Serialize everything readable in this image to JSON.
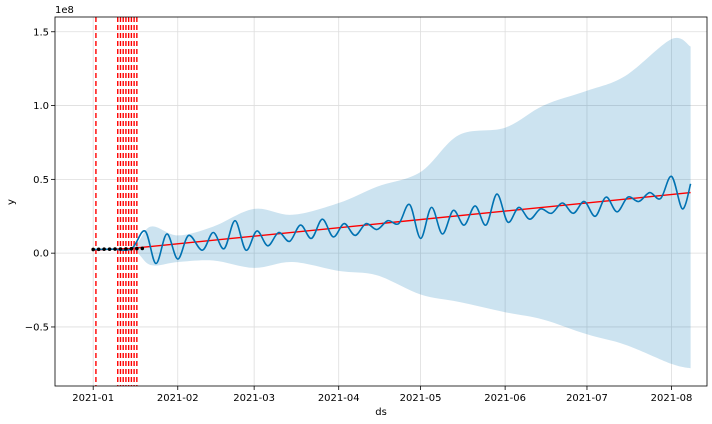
{
  "chart_data": {
    "type": "line",
    "xlabel": "ds",
    "ylabel": "y",
    "offset_text": "1e8",
    "scale_factor": 100000000,
    "grid": true,
    "xlim": [
      "2020-12-18",
      "2021-08-14"
    ],
    "ylim": [
      -0.9,
      1.6
    ],
    "x_ticks": [
      {
        "value": "2021-01-01",
        "label": "2021-01"
      },
      {
        "value": "2021-02-01",
        "label": "2021-02"
      },
      {
        "value": "2021-03-01",
        "label": "2021-03"
      },
      {
        "value": "2021-04-01",
        "label": "2021-04"
      },
      {
        "value": "2021-05-01",
        "label": "2021-05"
      },
      {
        "value": "2021-06-01",
        "label": "2021-06"
      },
      {
        "value": "2021-07-01",
        "label": "2021-07"
      },
      {
        "value": "2021-08-01",
        "label": "2021-08"
      }
    ],
    "y_ticks": [
      {
        "value": -0.5,
        "label": "−0.5"
      },
      {
        "value": 0.0,
        "label": "0.0"
      },
      {
        "value": 0.5,
        "label": "0.5"
      },
      {
        "value": 1.0,
        "label": "1.0"
      },
      {
        "value": 1.5,
        "label": "1.5"
      }
    ],
    "observed_points": {
      "color": "#000000",
      "x": [
        "2021-01-01",
        "2021-01-03",
        "2021-01-05",
        "2021-01-07",
        "2021-01-09",
        "2021-01-11",
        "2021-01-13",
        "2021-01-15",
        "2021-01-17",
        "2021-01-19"
      ],
      "y": [
        0.025,
        0.026,
        0.027,
        0.027,
        0.028,
        0.028,
        0.029,
        0.03,
        0.031,
        0.032
      ]
    },
    "forecast": {
      "color": "#0072B2",
      "x": [
        "2021-01-01",
        "2021-01-08",
        "2021-01-15",
        "2021-01-20",
        "2021-01-24",
        "2021-01-28",
        "2021-02-01",
        "2021-02-05",
        "2021-02-10",
        "2021-02-14",
        "2021-02-18",
        "2021-02-22",
        "2021-02-26",
        "2021-03-02",
        "2021-03-06",
        "2021-03-10",
        "2021-03-14",
        "2021-03-18",
        "2021-03-22",
        "2021-03-26",
        "2021-03-30",
        "2021-04-03",
        "2021-04-07",
        "2021-04-11",
        "2021-04-15",
        "2021-04-19",
        "2021-04-23",
        "2021-04-27",
        "2021-05-01",
        "2021-05-05",
        "2021-05-09",
        "2021-05-13",
        "2021-05-17",
        "2021-05-21",
        "2021-05-25",
        "2021-05-29",
        "2021-06-02",
        "2021-06-06",
        "2021-06-10",
        "2021-06-14",
        "2021-06-18",
        "2021-06-22",
        "2021-06-26",
        "2021-06-30",
        "2021-07-04",
        "2021-07-08",
        "2021-07-12",
        "2021-07-16",
        "2021-07-20",
        "2021-07-24",
        "2021-07-28",
        "2021-08-01",
        "2021-08-05",
        "2021-08-08"
      ],
      "y": [
        0.025,
        0.027,
        0.03,
        0.15,
        -0.07,
        0.13,
        -0.04,
        0.12,
        0.02,
        0.14,
        0.03,
        0.22,
        0.02,
        0.15,
        0.05,
        0.14,
        0.08,
        0.19,
        0.1,
        0.23,
        0.11,
        0.2,
        0.12,
        0.2,
        0.16,
        0.22,
        0.2,
        0.33,
        0.1,
        0.31,
        0.13,
        0.29,
        0.19,
        0.32,
        0.19,
        0.4,
        0.21,
        0.31,
        0.23,
        0.3,
        0.27,
        0.34,
        0.27,
        0.35,
        0.25,
        0.38,
        0.28,
        0.38,
        0.35,
        0.41,
        0.37,
        0.52,
        0.3,
        0.47
      ]
    },
    "uncertainty": {
      "color": "#0072B2",
      "opacity": 0.2,
      "x": [
        "2021-01-01",
        "2021-01-15",
        "2021-01-22",
        "2021-02-01",
        "2021-02-14",
        "2021-03-01",
        "2021-03-15",
        "2021-04-01",
        "2021-04-15",
        "2021-05-01",
        "2021-05-15",
        "2021-06-01",
        "2021-06-15",
        "2021-07-01",
        "2021-07-15",
        "2021-08-01",
        "2021-08-08"
      ],
      "upper": [
        0.03,
        0.035,
        0.18,
        0.12,
        0.18,
        0.3,
        0.26,
        0.34,
        0.45,
        0.55,
        0.8,
        0.85,
        1.0,
        1.1,
        1.2,
        1.45,
        1.4
      ],
      "lower": [
        0.02,
        0.025,
        -0.08,
        -0.06,
        -0.05,
        -0.1,
        -0.06,
        -0.12,
        -0.15,
        -0.28,
        -0.33,
        -0.4,
        -0.45,
        -0.55,
        -0.62,
        -0.75,
        -0.78
      ]
    },
    "trend": {
      "color": "#ff0000",
      "x": [
        "2021-01-01",
        "2021-01-15",
        "2021-08-08"
      ],
      "y": [
        0.022,
        0.032,
        0.41
      ]
    },
    "changepoints": {
      "color": "#ff0000",
      "x": [
        "2021-01-02",
        "2021-01-10",
        "2021-01-11",
        "2021-01-12",
        "2021-01-13",
        "2021-01-14",
        "2021-01-15",
        "2021-01-16",
        "2021-01-17"
      ]
    }
  }
}
